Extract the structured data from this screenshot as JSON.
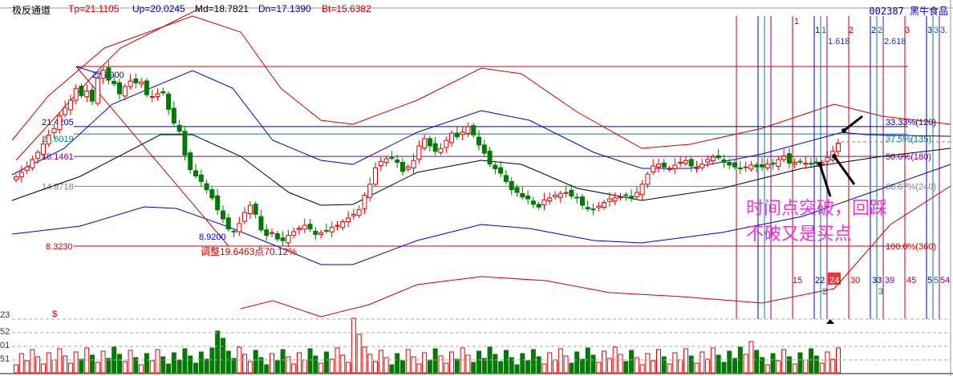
{
  "header": {
    "indicator_name": "极反通道",
    "tp": "Tp=21.1105",
    "up": "Up=20.0245",
    "md": "Md=18.7821",
    "dn": "Dn=17.1390",
    "bt": "Bt=15.6382",
    "stock": "002387 黑牛食品"
  },
  "colors": {
    "up": "#e00000",
    "down": "#007a00",
    "tp": "#cc0000",
    "up_line": "#0000cc",
    "md": "#000000",
    "fib_blue": "#0000aa",
    "fib_teal": "#008080",
    "fib_purple": "#800080",
    "annotation": "#ee33dd"
  },
  "annotation": {
    "line1": "时间点突破，回踩",
    "line2": "不破又是买点"
  },
  "chart_data": {
    "type": "candlestick",
    "price_levels": [
      {
        "label": "27.9900",
        "value": 27.99,
        "color": "#cc0000"
      },
      {
        "label": "21.4205",
        "value": 21.4205,
        "color": "#0000aa"
      },
      {
        "label": "20.6019",
        "value": 20.6019,
        "color": "#008080"
      },
      {
        "label": "18.1461",
        "value": 18.1461,
        "color": "#800080"
      },
      {
        "label": "14.8718",
        "value": 14.8718,
        "color": "#808080"
      },
      {
        "label": "8.3230",
        "value": 8.323,
        "color": "#cc0000"
      }
    ],
    "low_label": "8.9200",
    "adjust_label": "调整19.6463点70.12%",
    "right_levels": [
      {
        "label": "33.33%(120)",
        "value": 21.4205,
        "color": "#0000aa"
      },
      {
        "label": "37.5%(135)",
        "value": 20.6019,
        "color": "#008080"
      },
      {
        "label": "50.0%(180)",
        "value": 18.1461,
        "color": "#800080"
      },
      {
        "label": "66.67%(240)",
        "value": 14.8718,
        "color": "#808080"
      },
      {
        "label": "100.0%(360)",
        "value": 8.323,
        "color": "#cc0000"
      }
    ],
    "time_top_labels": [
      "1",
      "1",
      "1",
      "1.618",
      "2",
      "2",
      "2",
      "2.618",
      "3",
      "3",
      "3",
      "3."
    ],
    "time_bottom_labels": [
      "15",
      "22",
      "2",
      "24",
      "30",
      "33",
      "3",
      "39",
      "45",
      "5",
      "5",
      "54"
    ],
    "volume_axis": [
      "23",
      "52",
      "01",
      "51"
    ],
    "volume_marker": "$",
    "closes": [
      15.9,
      16.4,
      17,
      17.8,
      18.6,
      19.5,
      20.5,
      21.2,
      22.6,
      23.5,
      24.3,
      25.6,
      24.8,
      25.3,
      24.2,
      26.7,
      27.6,
      26.5,
      26.1,
      25.0,
      25.8,
      26.4,
      26.2,
      26.3,
      24.9,
      24.7,
      25.0,
      25.1,
      23.3,
      21.8,
      20.9,
      18.3,
      16.7,
      16.0,
      15.4,
      14.5,
      13.6,
      12.3,
      11.3,
      10.2,
      9.9,
      10.8,
      12.0,
      12.8,
      11.8,
      10.1,
      9.5,
      9.8,
      9.1,
      8.92,
      9.5,
      9.9,
      10.3,
      10.6,
      10.2,
      9.6,
      9.8,
      10.0,
      10.4,
      10.6,
      11.0,
      11.4,
      11.8,
      12.3,
      13.9,
      15.1,
      16.9,
      17.6,
      17.9,
      18.0,
      17.5,
      16.5,
      17.0,
      17.7,
      19.3,
      20.1,
      19.3,
      18.7,
      19.0,
      19.9,
      20.7,
      20.3,
      20.8,
      21.4,
      20.5,
      19.4,
      18.5,
      17.3,
      16.8,
      16.3,
      15.4,
      14.5,
      14.2,
      13.7,
      13.5,
      12.9,
      12.6,
      13.4,
      13.6,
      13.9,
      14.1,
      14.2,
      13.8,
      13.6,
      12.8,
      12.4,
      12.3,
      12.7,
      13.1,
      13.5,
      13.6,
      13.7,
      13.9,
      13.6,
      14.2,
      15.1,
      16.2,
      17.1,
      17.3,
      17.0,
      16.8,
      17.2,
      17.5,
      17.7,
      17.1,
      16.9,
      17.3,
      17.8,
      18.1,
      18.0,
      17.5,
      17.2,
      17.0,
      16.8,
      17.0,
      17.2,
      17.0,
      17.0,
      17.3,
      17.3,
      17.8,
      18.2,
      17.4,
      17.5,
      17.6,
      17.4,
      17.3,
      17.4,
      17.5,
      18.0,
      18.7,
      19.6
    ]
  }
}
